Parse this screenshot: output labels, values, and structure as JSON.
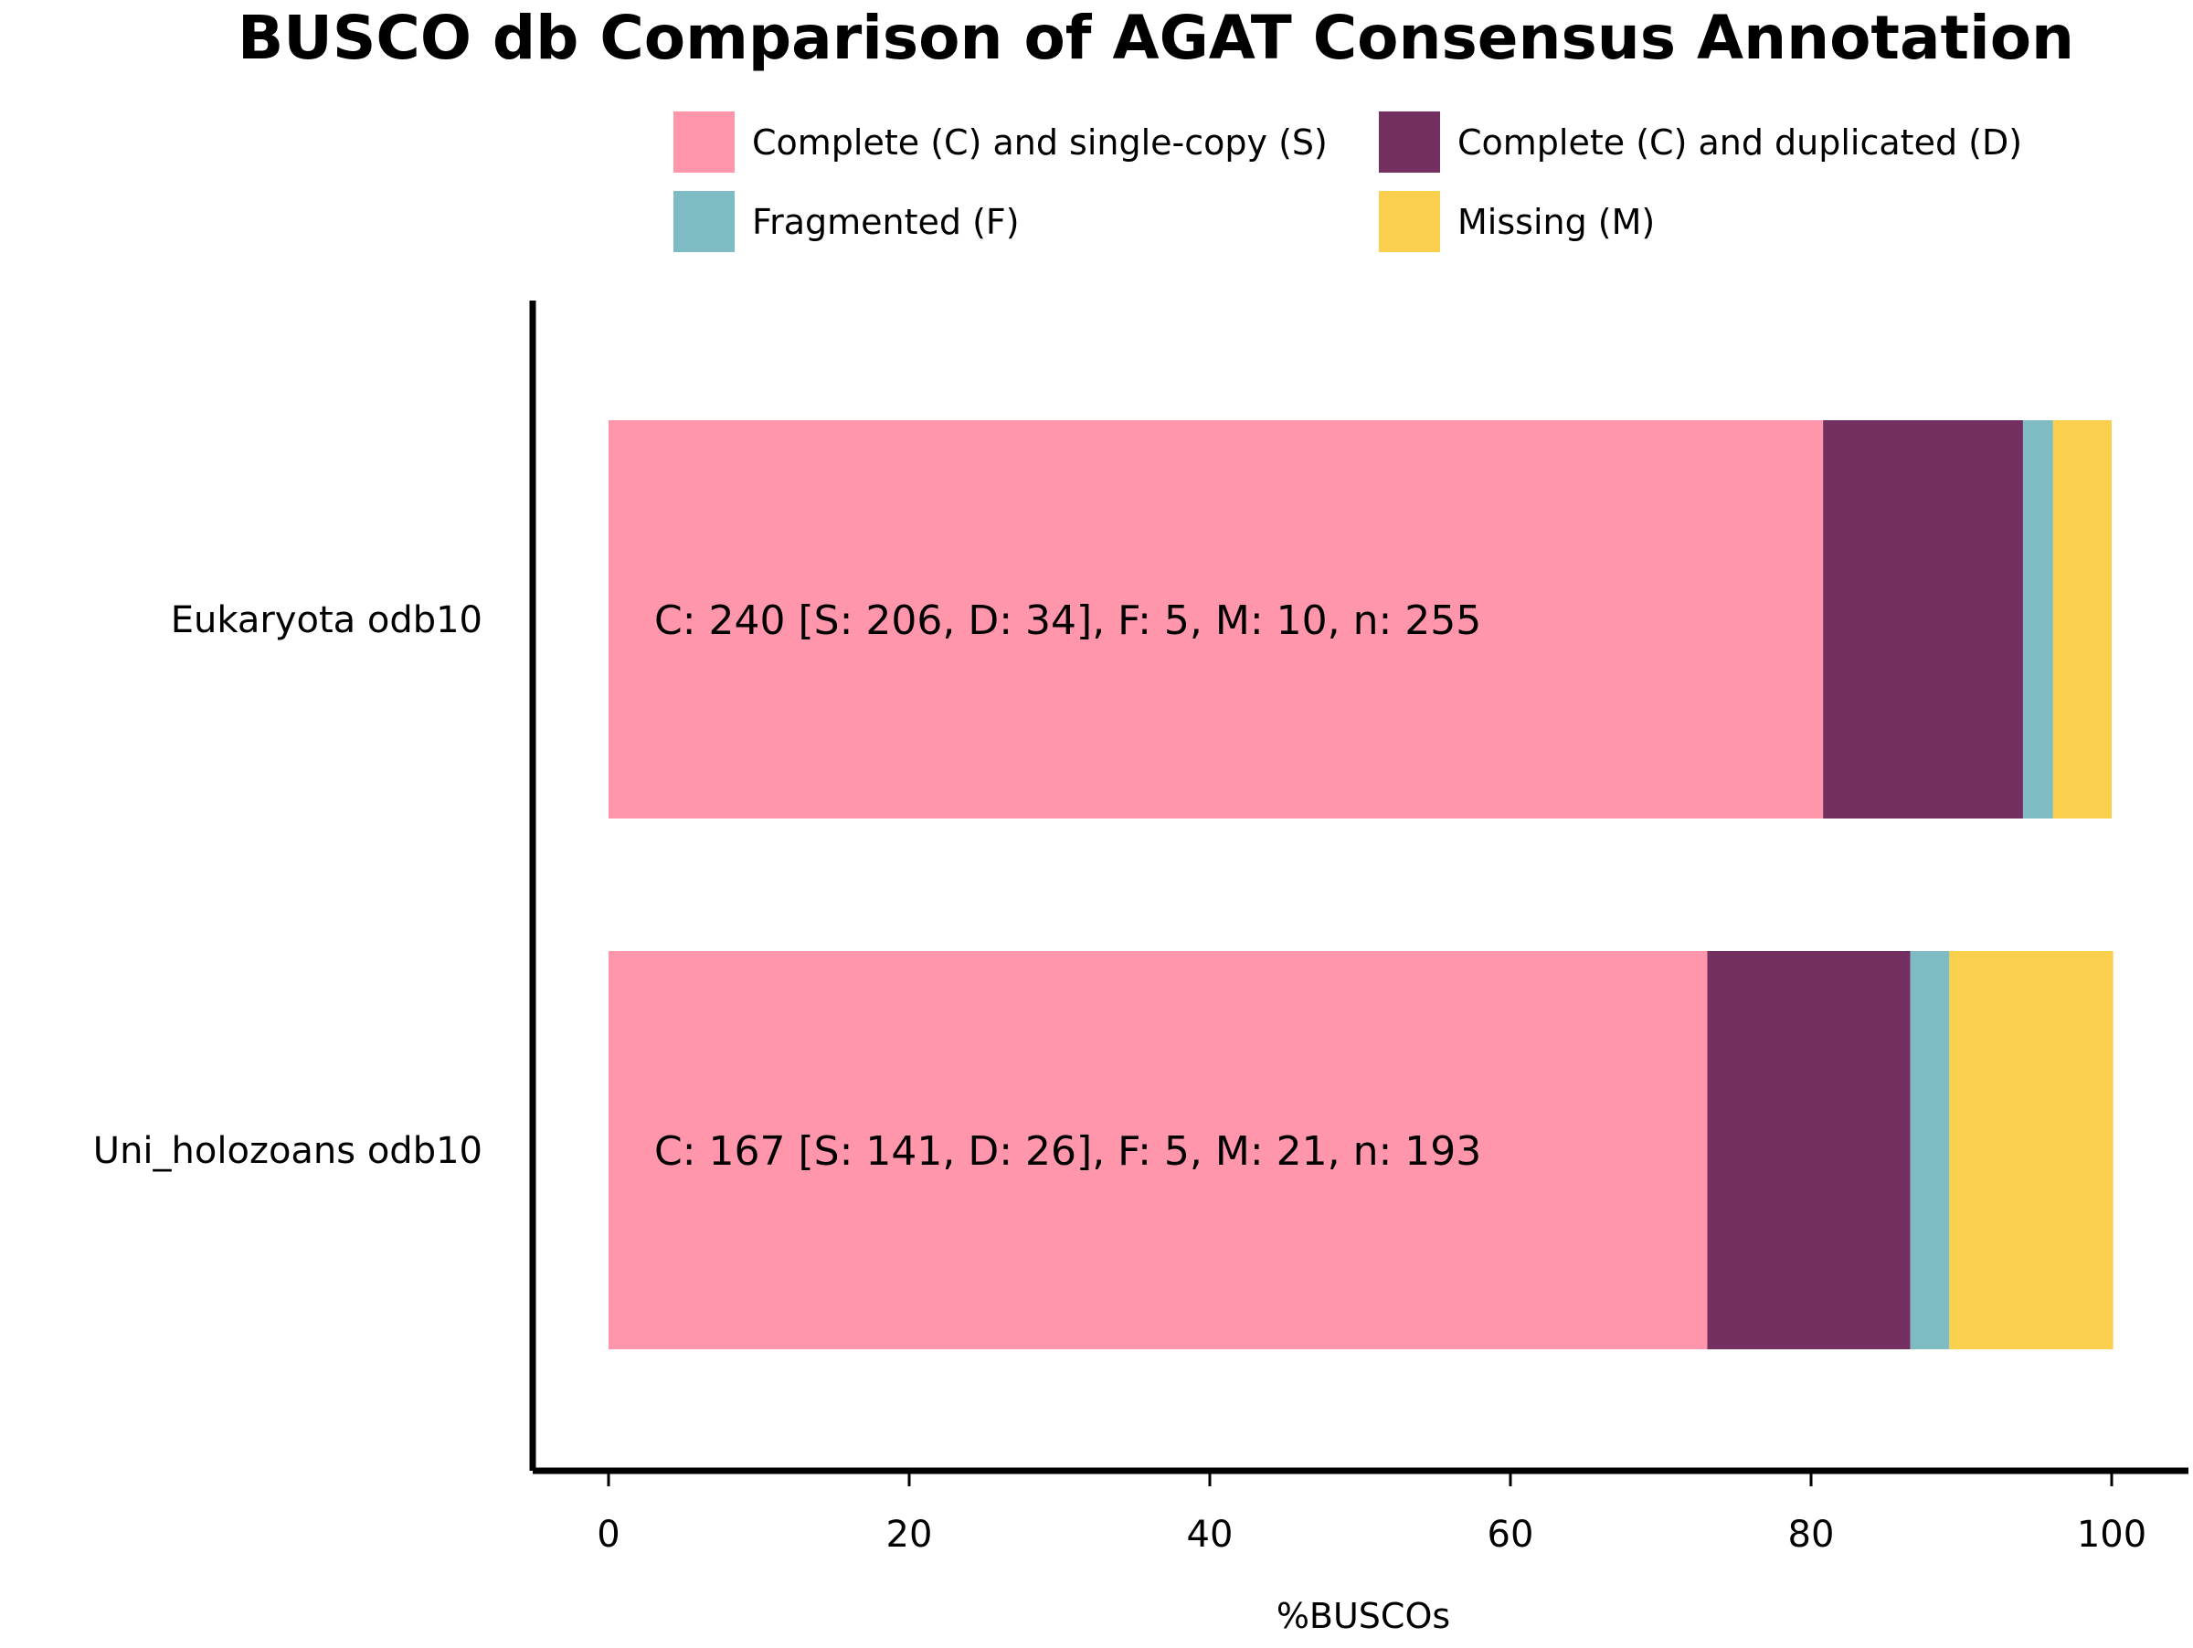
{
  "chart_data": {
    "type": "bar",
    "orientation": "horizontal",
    "stacked": true,
    "title": "BUSCO db Comparison of AGAT Consensus Annotation",
    "xlabel": "%BUSCOs",
    "ylabel": "",
    "xlim": [
      0,
      100
    ],
    "xticks": [
      0,
      20,
      40,
      60,
      80,
      100
    ],
    "grid": false,
    "legend_position": "top-right",
    "categories": [
      "Eukaryota odb10",
      "Uni_holozoans odb10"
    ],
    "series": [
      {
        "name": "Complete (C) and single-copy (S)",
        "color": "#FF96AC",
        "values": [
          80.8,
          73.1
        ]
      },
      {
        "name": "Complete (C) and duplicated (D)",
        "color": "#722F5F",
        "values": [
          13.3,
          13.5
        ]
      },
      {
        "name": "Fragmented (F)",
        "color": "#7FBBC2",
        "values": [
          2.0,
          2.6
        ]
      },
      {
        "name": "Missing (M)",
        "color": "#FACF4E",
        "values": [
          3.9,
          10.9
        ]
      }
    ],
    "bar_labels": [
      "C: 240 [S: 206, D: 34], F: 5, M: 10, n: 255",
      "C: 167 [S: 141, D: 26], F: 5, M: 21, n: 193"
    ]
  }
}
